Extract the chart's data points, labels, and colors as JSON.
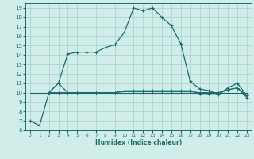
{
  "title": "",
  "xlabel": "Humidex (Indice chaleur)",
  "xlim": [
    -0.5,
    23.5
  ],
  "ylim": [
    6,
    19.5
  ],
  "yticks": [
    6,
    7,
    8,
    9,
    10,
    11,
    12,
    13,
    14,
    15,
    16,
    17,
    18,
    19
  ],
  "xticks": [
    0,
    1,
    2,
    3,
    4,
    5,
    6,
    7,
    8,
    9,
    10,
    11,
    12,
    13,
    14,
    15,
    16,
    17,
    18,
    19,
    20,
    21,
    22,
    23
  ],
  "bg_color": "#d1ede9",
  "line_color": "#1a6b6b",
  "grid_color": "#b0d8d2",
  "main_curve_x": [
    0,
    1,
    2,
    3,
    4,
    5,
    6,
    7,
    8,
    9,
    10,
    11,
    12,
    13,
    14,
    15,
    16,
    17,
    18,
    19,
    20,
    21,
    22,
    23
  ],
  "main_curve_y": [
    7.0,
    6.5,
    10.0,
    11.0,
    14.1,
    14.3,
    14.3,
    14.3,
    14.8,
    15.1,
    16.4,
    19.0,
    18.7,
    19.0,
    18.0,
    17.1,
    15.2,
    11.2,
    10.4,
    10.2,
    9.8,
    10.5,
    11.0,
    9.7
  ],
  "flat_curve1_x": [
    0,
    1,
    2,
    3,
    4,
    5,
    6,
    7,
    8,
    9,
    10,
    11,
    12,
    13,
    14,
    15,
    16,
    17,
    18,
    19,
    20,
    21,
    22,
    23
  ],
  "flat_curve1_y": [
    10.0,
    10.0,
    10.0,
    10.0,
    10.0,
    10.0,
    10.0,
    10.0,
    10.0,
    10.0,
    10.0,
    10.0,
    10.0,
    10.0,
    10.0,
    10.0,
    10.0,
    10.0,
    10.0,
    10.0,
    10.0,
    10.0,
    10.0,
    10.0
  ],
  "flat_curve2_x": [
    2,
    3,
    4,
    5,
    6,
    7,
    8,
    9,
    10,
    11,
    12,
    13,
    14,
    15,
    16,
    17,
    18,
    19,
    20,
    21,
    22,
    23
  ],
  "flat_curve2_y": [
    10.0,
    11.0,
    10.0,
    10.0,
    10.0,
    10.0,
    10.0,
    10.0,
    10.1,
    10.1,
    10.1,
    10.1,
    10.1,
    10.1,
    10.1,
    10.1,
    10.0,
    10.0,
    10.0,
    10.3,
    10.5,
    9.7
  ],
  "flat_curve3_x": [
    2,
    3,
    4,
    5,
    6,
    7,
    8,
    9,
    10,
    11,
    12,
    13,
    14,
    15,
    16,
    17,
    18,
    19,
    20,
    21,
    22,
    23
  ],
  "flat_curve3_y": [
    10.0,
    10.0,
    10.0,
    10.0,
    10.0,
    10.0,
    10.0,
    10.0,
    10.2,
    10.2,
    10.2,
    10.2,
    10.2,
    10.2,
    10.2,
    10.2,
    9.9,
    9.9,
    9.9,
    10.3,
    10.5,
    9.5
  ]
}
